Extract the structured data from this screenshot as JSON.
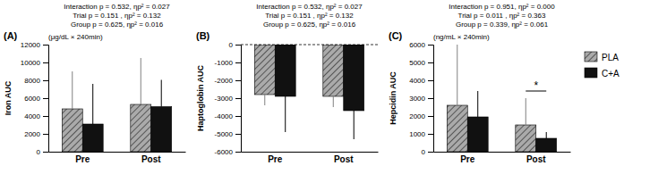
{
  "chart_data": [
    {
      "type": "bar",
      "title": "(A)",
      "subtitle": [
        "Interaction p = 0.532, ηp² = 0.027",
        "Trial p = 0.151 , ηp² = 0.132",
        "Group p = 0.625, ηp² = 0.016"
      ],
      "ylabel": "Iron AUC",
      "annotations": [
        {
          "text": "(μg/dL × 240min)"
        }
      ],
      "categories": [
        "Pre",
        "Post"
      ],
      "series": [
        {
          "name": "PLA",
          "color": "#aaaaaa",
          "values": [
            4800,
            5300
          ],
          "errors": [
            4200,
            5200
          ]
        },
        {
          "name": "C+A",
          "color": "#111111",
          "values": [
            3100,
            5050
          ],
          "errors": [
            4500,
            3000
          ]
        }
      ],
      "ylim": [
        0,
        12000
      ],
      "yticks": [
        0,
        2000,
        4000,
        6000,
        8000,
        10000,
        12000
      ],
      "grid": false
    },
    {
      "type": "bar",
      "title": "(B)",
      "subtitle": [
        "Interaction p = 0.532, ηp² = 0.027",
        "Trial p = 0.151 , ηp² = 0.132",
        "Group p = 0.625, ηp² = 0.016"
      ],
      "ylabel": "Haptoglobin AUC",
      "categories": [
        "Pre",
        "Post"
      ],
      "series": [
        {
          "name": "PLA",
          "color": "#aaaaaa",
          "values": [
            -2800,
            -2900
          ],
          "errors": [
            600,
            600
          ]
        },
        {
          "name": "C+A",
          "color": "#111111",
          "values": [
            -2900,
            -3700
          ],
          "errors": [
            2000,
            1600
          ]
        }
      ],
      "ylim": [
        -6000,
        0
      ],
      "yticks": [
        -6000,
        -5000,
        -4000,
        -3000,
        -2000,
        -1000,
        0
      ],
      "grid": false
    },
    {
      "type": "bar",
      "title": "(C)",
      "subtitle": [
        "Interaction p = 0.951, ηp² = 0.000",
        "Trial p = 0.011 , ηp² = 0.363",
        "Group p = 0.339, ηp² = 0.061"
      ],
      "ylabel": "Hepcidin AUC",
      "annotations": [
        {
          "text": "(ng/mL × 240min)"
        },
        {
          "text": "*",
          "x": "Post",
          "y": 3400
        }
      ],
      "categories": [
        "Pre",
        "Post"
      ],
      "series": [
        {
          "name": "PLA",
          "color": "#aaaaaa",
          "values": [
            2600,
            1500
          ],
          "errors": [
            3400,
            1500
          ]
        },
        {
          "name": "C+A",
          "color": "#111111",
          "values": [
            1950,
            750
          ],
          "errors": [
            1450,
            350
          ]
        }
      ],
      "ylim": [
        0,
        6000
      ],
      "yticks": [
        0,
        1000,
        2000,
        3000,
        4000,
        5000,
        6000
      ],
      "grid": false,
      "legend": "right"
    }
  ]
}
